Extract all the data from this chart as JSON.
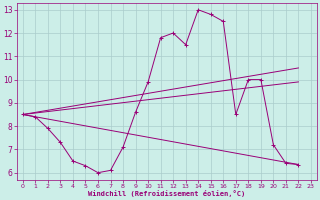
{
  "xlabel": "Windchill (Refroidissement éolien,°C)",
  "background_color": "#cceee8",
  "grid_color": "#aacccc",
  "line_color": "#990077",
  "xlim": [
    -0.5,
    23.5
  ],
  "ylim": [
    5.7,
    13.3
  ],
  "yticks": [
    6,
    7,
    8,
    9,
    10,
    11,
    12,
    13
  ],
  "xticks": [
    0,
    1,
    2,
    3,
    4,
    5,
    6,
    7,
    8,
    9,
    10,
    11,
    12,
    13,
    14,
    15,
    16,
    17,
    18,
    19,
    20,
    21,
    22,
    23
  ],
  "series1_x": [
    0,
    1,
    2,
    3,
    4,
    5,
    6,
    7,
    8,
    9,
    10,
    11,
    12,
    13,
    14,
    15,
    16,
    17,
    18,
    19,
    20,
    21,
    22
  ],
  "series1_y": [
    8.5,
    8.4,
    7.9,
    7.3,
    6.5,
    6.3,
    6.0,
    6.1,
    7.1,
    8.6,
    9.9,
    11.8,
    12.0,
    11.5,
    13.0,
    12.8,
    12.5,
    8.5,
    10.0,
    10.0,
    7.2,
    6.4,
    6.35
  ],
  "series2_x": [
    0,
    22
  ],
  "series2_y": [
    8.5,
    6.35
  ],
  "series3_x": [
    0,
    22
  ],
  "series3_y": [
    8.5,
    9.9
  ],
  "series4_x": [
    0,
    22
  ],
  "series4_y": [
    8.5,
    10.5
  ]
}
